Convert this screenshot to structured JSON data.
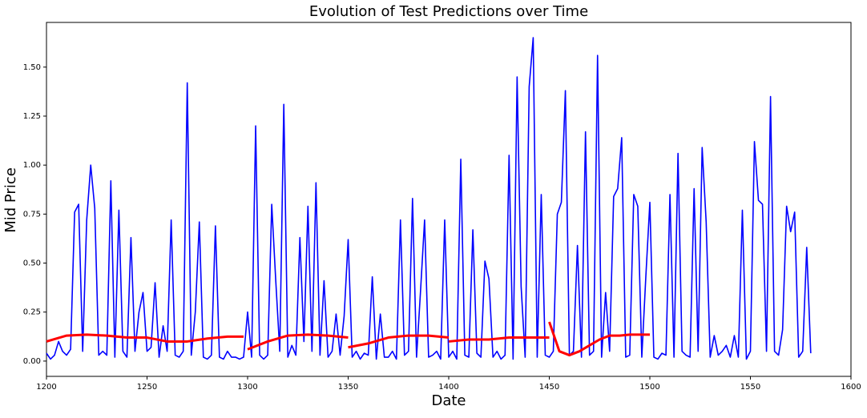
{
  "chart_data": {
    "type": "line",
    "title": "Evolution of Test Predictions over Time",
    "xlabel": "Date",
    "ylabel": "Mid Price",
    "xlim": [
      1200,
      1600
    ],
    "ylim": [
      -0.078,
      1.728
    ],
    "xticks": [
      1200,
      1250,
      1300,
      1350,
      1400,
      1450,
      1500,
      1550,
      1600
    ],
    "yticks": [
      {
        "value": 0,
        "label": "0.00"
      },
      {
        "value": 0.25,
        "label": "0.25"
      },
      {
        "value": 0.5,
        "label": "0.50"
      },
      {
        "value": 0.75,
        "label": "0.75"
      },
      {
        "value": 1,
        "label": "1.00"
      },
      {
        "value": 1.25,
        "label": "1.25"
      },
      {
        "value": 1.5,
        "label": "1.50"
      }
    ],
    "series": [
      {
        "color": "#0000ff",
        "width": 1.6,
        "x": [
          1200,
          1202,
          1204,
          1206,
          1208,
          1210,
          1212,
          1214,
          1216,
          1218,
          1220,
          1222,
          1224,
          1226,
          1228,
          1230,
          1232,
          1234,
          1236,
          1238,
          1240,
          1242,
          1244,
          1246,
          1248,
          1250,
          1252,
          1254,
          1256,
          1258,
          1260,
          1262,
          1264,
          1266,
          1268,
          1270,
          1272,
          1274,
          1276,
          1278,
          1280,
          1282,
          1284,
          1286,
          1288,
          1290,
          1292,
          1294,
          1296,
          1298,
          1300,
          1302,
          1304,
          1306,
          1308,
          1310,
          1312,
          1314,
          1316,
          1318,
          1320,
          1322,
          1324,
          1326,
          1328,
          1330,
          1332,
          1334,
          1336,
          1338,
          1340,
          1342,
          1344,
          1346,
          1348,
          1350,
          1352,
          1354,
          1356,
          1358,
          1360,
          1362,
          1364,
          1366,
          1368,
          1370,
          1372,
          1374,
          1376,
          1378,
          1380,
          1382,
          1384,
          1386,
          1388,
          1390,
          1392,
          1394,
          1396,
          1398,
          1400,
          1402,
          1404,
          1406,
          1408,
          1410,
          1412,
          1414,
          1416,
          1418,
          1420,
          1422,
          1424,
          1426,
          1428,
          1430,
          1432,
          1434,
          1436,
          1438,
          1440,
          1442,
          1444,
          1446,
          1448,
          1450,
          1452,
          1454,
          1456,
          1458,
          1460,
          1462,
          1464,
          1466,
          1468,
          1470,
          1472,
          1474,
          1476,
          1478,
          1480,
          1482,
          1484,
          1486,
          1488,
          1490,
          1492,
          1494,
          1496,
          1498,
          1500,
          1502,
          1504,
          1506,
          1508,
          1510,
          1512,
          1514,
          1516,
          1518,
          1520,
          1522,
          1524,
          1526,
          1528,
          1530,
          1532,
          1534,
          1536,
          1538,
          1540,
          1542,
          1544,
          1546,
          1548,
          1550,
          1552,
          1554,
          1556,
          1558,
          1560,
          1562,
          1564,
          1566,
          1568,
          1570,
          1572,
          1574,
          1576,
          1578,
          1580
        ],
        "values": [
          0.04,
          0.01,
          0.03,
          0.1,
          0.05,
          0.03,
          0.06,
          0.76,
          0.8,
          0.05,
          0.72,
          1.0,
          0.78,
          0.03,
          0.05,
          0.03,
          0.92,
          0.02,
          0.77,
          0.05,
          0.02,
          0.63,
          0.05,
          0.25,
          0.35,
          0.05,
          0.07,
          0.4,
          0.02,
          0.18,
          0.05,
          0.72,
          0.03,
          0.02,
          0.05,
          1.42,
          0.03,
          0.25,
          0.71,
          0.02,
          0.01,
          0.03,
          0.69,
          0.02,
          0.01,
          0.05,
          0.02,
          0.02,
          0.01,
          0.02,
          0.25,
          0.02,
          1.2,
          0.03,
          0.01,
          0.03,
          0.8,
          0.41,
          0.05,
          1.31,
          0.02,
          0.08,
          0.03,
          0.63,
          0.1,
          0.79,
          0.05,
          0.91,
          0.03,
          0.41,
          0.02,
          0.05,
          0.24,
          0.03,
          0.23,
          0.62,
          0.02,
          0.05,
          0.01,
          0.04,
          0.03,
          0.43,
          0.01,
          0.24,
          0.02,
          0.02,
          0.05,
          0.01,
          0.72,
          0.03,
          0.05,
          0.83,
          0.02,
          0.36,
          0.72,
          0.02,
          0.03,
          0.05,
          0.01,
          0.72,
          0.02,
          0.05,
          0.01,
          1.03,
          0.03,
          0.02,
          0.67,
          0.04,
          0.02,
          0.51,
          0.42,
          0.02,
          0.05,
          0.01,
          0.03,
          1.05,
          0.01,
          1.45,
          0.38,
          0.02,
          1.4,
          1.65,
          0.02,
          0.85,
          0.03,
          0.02,
          0.05,
          0.75,
          0.81,
          1.38,
          0.03,
          0.05,
          0.59,
          0.02,
          1.17,
          0.03,
          0.05,
          1.56,
          0.02,
          0.35,
          0.05,
          0.84,
          0.88,
          1.14,
          0.02,
          0.03,
          0.85,
          0.79,
          0.02,
          0.43,
          0.81,
          0.02,
          0.01,
          0.04,
          0.03,
          0.85,
          0.02,
          1.06,
          0.05,
          0.03,
          0.02,
          0.88,
          0.05,
          1.09,
          0.71,
          0.02,
          0.13,
          0.03,
          0.05,
          0.08,
          0.02,
          0.13,
          0.02,
          0.77,
          0.01,
          0.05,
          1.12,
          0.82,
          0.8,
          0.05,
          1.35,
          0.05,
          0.03,
          0.16,
          0.79,
          0.66,
          0.76,
          0.02,
          0.05,
          0.58,
          0.04
        ]
      },
      {
        "color": "#ff0000",
        "width": 3,
        "x": [
          1200,
          1210,
          1220,
          1230,
          1240,
          1250,
          1260,
          1270,
          1280,
          1290,
          1298
        ],
        "values": [
          0.1,
          0.13,
          0.135,
          0.13,
          0.12,
          0.12,
          0.1,
          0.1,
          0.115,
          0.125,
          0.125
        ]
      },
      {
        "color": "#ff0000",
        "width": 3,
        "x": [
          1300,
          1310,
          1320,
          1330,
          1340,
          1350
        ],
        "values": [
          0.06,
          0.1,
          0.13,
          0.135,
          0.13,
          0.12
        ]
      },
      {
        "color": "#ff0000",
        "width": 3,
        "x": [
          1350,
          1360,
          1370,
          1380,
          1390,
          1400
        ],
        "values": [
          0.07,
          0.09,
          0.12,
          0.13,
          0.13,
          0.12
        ]
      },
      {
        "color": "#ff0000",
        "width": 3,
        "x": [
          1400,
          1410,
          1420,
          1430,
          1440,
          1450
        ],
        "values": [
          0.1,
          0.11,
          0.11,
          0.12,
          0.12,
          0.12
        ]
      },
      {
        "color": "#ff0000",
        "width": 3,
        "x": [
          1450,
          1455,
          1460,
          1465,
          1470,
          1475,
          1480,
          1485,
          1490,
          1495,
          1500
        ],
        "values": [
          0.2,
          0.05,
          0.03,
          0.05,
          0.08,
          0.11,
          0.13,
          0.13,
          0.135,
          0.135,
          0.135
        ]
      }
    ]
  }
}
